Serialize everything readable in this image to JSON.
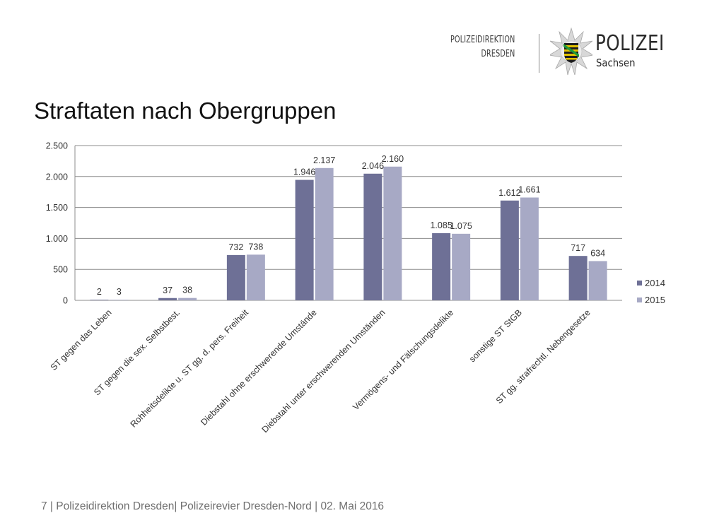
{
  "header": {
    "org_line1": "POLIZEIDIREKTION",
    "org_line2": "DRESDEN",
    "brand": "POLIZEI",
    "brand_sub": "Sachsen",
    "logo_icon": "police-star-badge-icon"
  },
  "page_title": "Straftaten nach Obergruppen",
  "footer": {
    "text": "7  | Polizeidirektion Dresden| Polizeirevier Dresden-Nord | 02. Mai 2016"
  },
  "colors": {
    "series_2014": "#6e7096",
    "series_2015": "#a7a9c5",
    "gridline": "#8c8c8c",
    "text": "#333333"
  },
  "chart_data": {
    "type": "bar",
    "title": "",
    "xlabel": "",
    "ylabel": "",
    "ylim": [
      0,
      2500
    ],
    "yticks": [
      0,
      500,
      1000,
      1500,
      2000,
      2500
    ],
    "ytick_labels": [
      "0",
      "500",
      "1.000",
      "1.500",
      "2.000",
      "2.500"
    ],
    "grid": true,
    "legend": "right",
    "categories": [
      "ST gegen das Leben",
      "ST gegen die sex. Selbstbest.",
      "Rohheitsdelikte u. ST gg. d. pers. Freiheit",
      "Diebstahl ohne erschwerende Umstände",
      "Diebstahl unter erschwerenden Umständen",
      "Vermögens- und Fälschungsdelikte",
      "sonstige ST StGB",
      "ST gg. strafrechtl. Nebengesetze"
    ],
    "series": [
      {
        "name": "2014",
        "values": [
          2,
          37,
          732,
          1946,
          2046,
          1085,
          1612,
          717
        ],
        "labels": [
          "2",
          "37",
          "732",
          "1.946",
          "2.046",
          "1.085",
          "1.612",
          "717"
        ]
      },
      {
        "name": "2015",
        "values": [
          3,
          38,
          738,
          2137,
          2160,
          1075,
          1661,
          634
        ],
        "labels": [
          "3",
          "38",
          "738",
          "2.137",
          "2.160",
          "1.075",
          "1.661",
          "634"
        ]
      }
    ]
  }
}
